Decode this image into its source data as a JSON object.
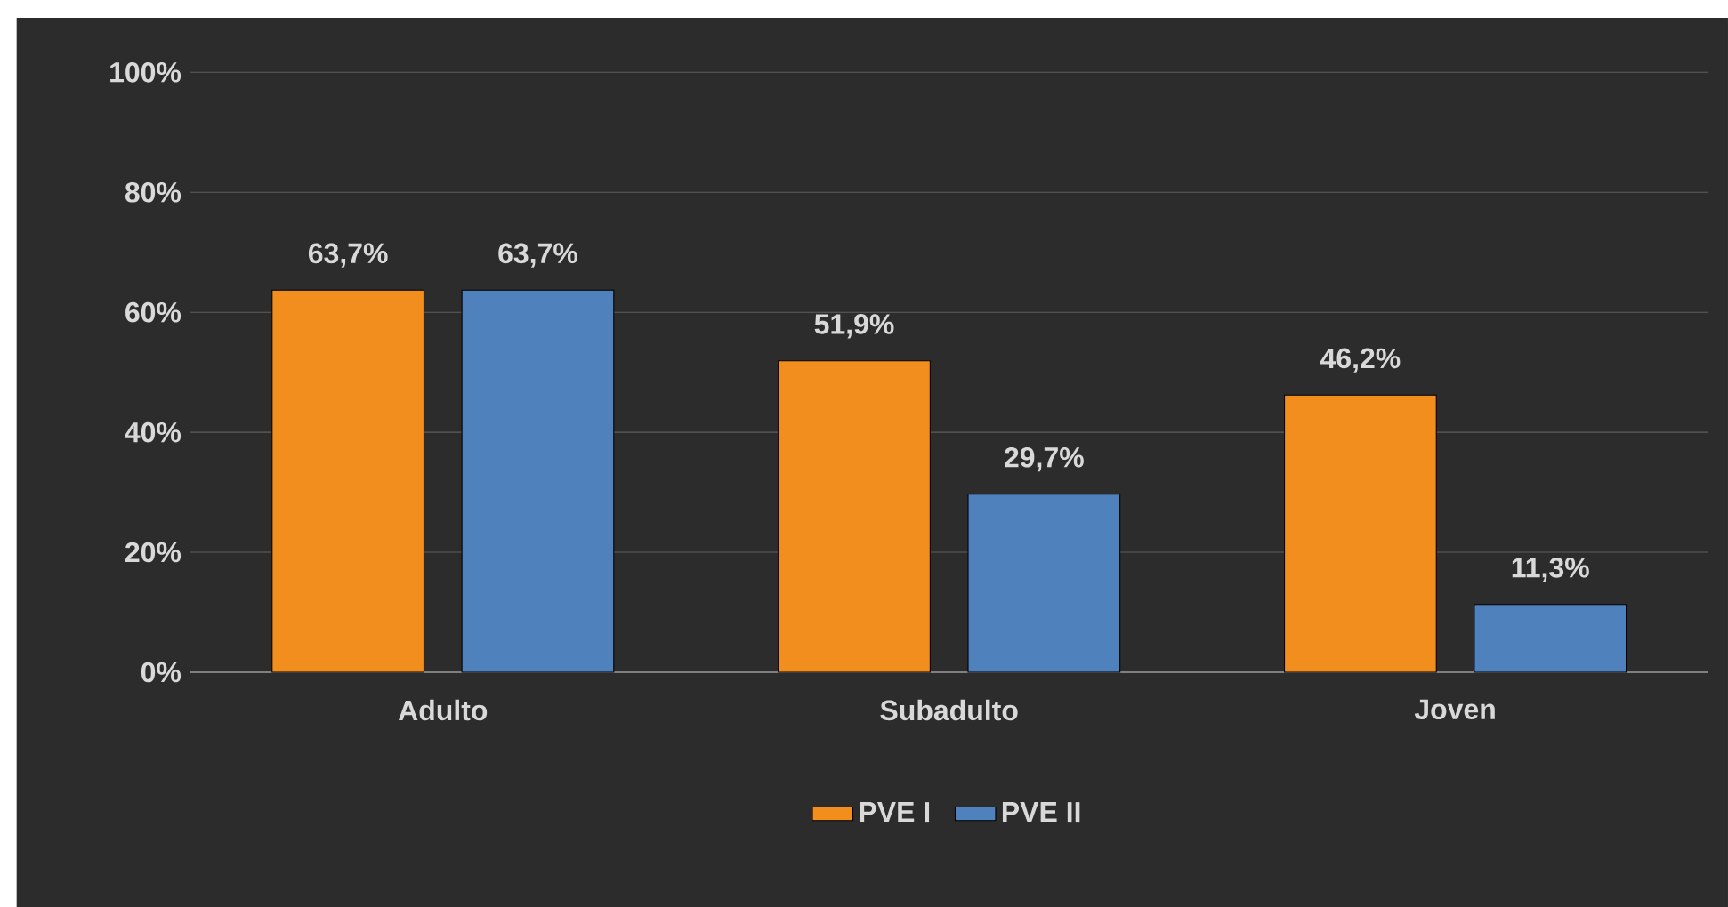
{
  "chart_data": {
    "type": "bar",
    "categories": [
      "Adulto",
      "Subadulto",
      "Joven"
    ],
    "series": [
      {
        "name": "PVE I",
        "color": "#f28e1e",
        "values": [
          63.7,
          51.9,
          46.2
        ],
        "value_labels": [
          "63,7%",
          "51,9%",
          "46,2%"
        ]
      },
      {
        "name": "PVE II",
        "color": "#4f81bd",
        "values": [
          63.7,
          29.7,
          11.3
        ],
        "value_labels": [
          "63,7%",
          "29,7%",
          "11,3%"
        ]
      }
    ],
    "ylim": [
      0,
      100
    ],
    "yticks": [
      {
        "value": 0,
        "label": "0%"
      },
      {
        "value": 20,
        "label": "20%"
      },
      {
        "value": 40,
        "label": "40%"
      },
      {
        "value": 60,
        "label": "60%"
      },
      {
        "value": 80,
        "label": "80%"
      },
      {
        "value": 100,
        "label": "100%"
      }
    ],
    "grid": "y",
    "legend": "bottom"
  }
}
